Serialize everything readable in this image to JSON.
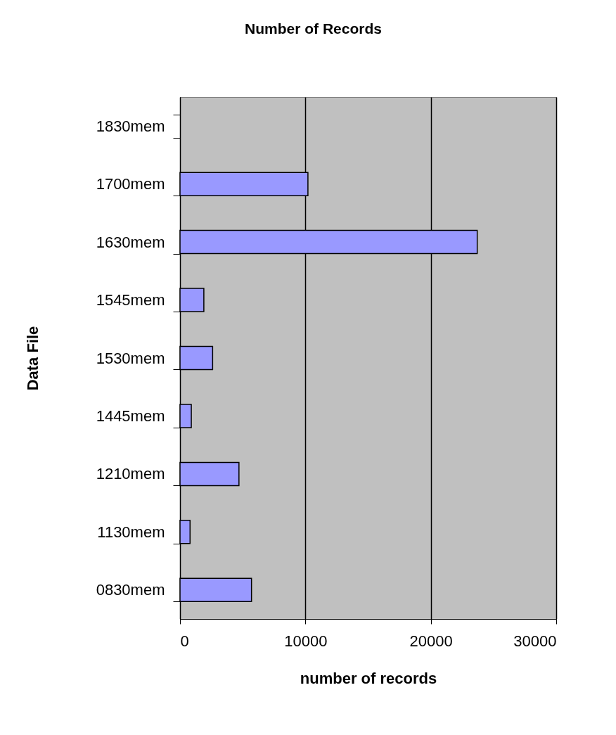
{
  "chart_data": {
    "type": "bar",
    "orientation": "horizontal",
    "title": "Number of Records",
    "xlabel": "number of records",
    "ylabel": "Data File",
    "categories": [
      "1830mem",
      "1700mem",
      "1630mem",
      "1545mem",
      "1530mem",
      "1445mem",
      "1210mem",
      "1130mem",
      "0830mem"
    ],
    "values": [
      null,
      10200,
      23700,
      1900,
      2600,
      900,
      4700,
      800,
      5700
    ],
    "color": "#9999ff",
    "xlim": [
      0,
      30000
    ],
    "xticks": [
      0,
      10000,
      20000,
      30000
    ],
    "grid": "x"
  }
}
